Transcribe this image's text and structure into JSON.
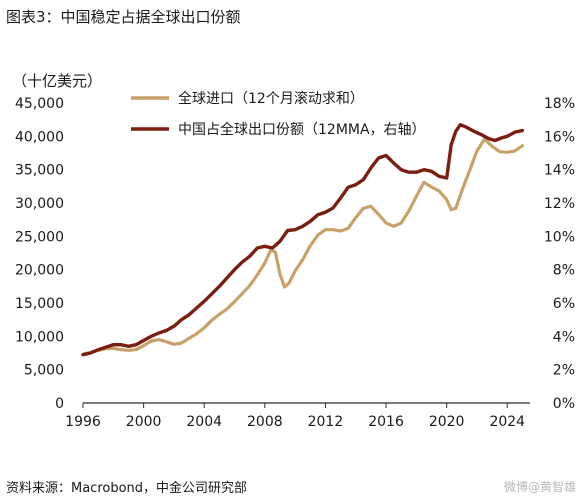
{
  "figure_title": "图表3：中国稳定占据全球出口份额",
  "source_note": "资料来源：Macrobond，中金公司研究部",
  "watermark": "微博@黄智雄",
  "colors": {
    "imports": "#c8a06a",
    "share": "#7a1e10",
    "axis": "#2a2a2a"
  },
  "chart_data": {
    "type": "line",
    "unit_label": "（十亿美元）",
    "xlim": [
      1996,
      2025.5
    ],
    "x_ticks": [
      1996,
      2000,
      2004,
      2008,
      2012,
      2016,
      2020,
      2024
    ],
    "y_left": {
      "lim": [
        0,
        45000
      ],
      "ticks": [
        "0",
        "5,000",
        "10,000",
        "15,000",
        "20,000",
        "25,000",
        "30,000",
        "35,000",
        "40,000",
        "45,000"
      ]
    },
    "y_right": {
      "lim": [
        0,
        18
      ],
      "ticks": [
        "0%",
        "2%",
        "4%",
        "6%",
        "8%",
        "10%",
        "12%",
        "14%",
        "16%",
        "18%"
      ]
    },
    "grid": false,
    "legend": "top-center",
    "series": [
      {
        "name": "全球进口（12个月滚动求和）",
        "axis": "left",
        "colorKey": "imports",
        "points": [
          [
            1996.0,
            7300
          ],
          [
            1996.5,
            7600
          ],
          [
            1997.0,
            7900
          ],
          [
            1997.5,
            8150
          ],
          [
            1998.0,
            8200
          ],
          [
            1998.5,
            8000
          ],
          [
            1999.0,
            7900
          ],
          [
            1999.5,
            8000
          ],
          [
            2000.0,
            8600
          ],
          [
            2000.5,
            9300
          ],
          [
            2001.0,
            9500
          ],
          [
            2001.5,
            9200
          ],
          [
            2002.0,
            8800
          ],
          [
            2002.5,
            9000
          ],
          [
            2003.0,
            9700
          ],
          [
            2003.5,
            10400
          ],
          [
            2004.0,
            11300
          ],
          [
            2004.5,
            12400
          ],
          [
            2005.0,
            13300
          ],
          [
            2005.5,
            14100
          ],
          [
            2006.0,
            15200
          ],
          [
            2006.5,
            16400
          ],
          [
            2007.0,
            17600
          ],
          [
            2007.5,
            19200
          ],
          [
            2008.0,
            21000
          ],
          [
            2008.4,
            23000
          ],
          [
            2008.7,
            22600
          ],
          [
            2009.0,
            19300
          ],
          [
            2009.3,
            17400
          ],
          [
            2009.6,
            18000
          ],
          [
            2010.0,
            19800
          ],
          [
            2010.5,
            21500
          ],
          [
            2011.0,
            23600
          ],
          [
            2011.5,
            25200
          ],
          [
            2012.0,
            26000
          ],
          [
            2012.5,
            26000
          ],
          [
            2013.0,
            25800
          ],
          [
            2013.5,
            26200
          ],
          [
            2014.0,
            27800
          ],
          [
            2014.5,
            29200
          ],
          [
            2015.0,
            29500
          ],
          [
            2015.5,
            28300
          ],
          [
            2016.0,
            27000
          ],
          [
            2016.5,
            26500
          ],
          [
            2017.0,
            27000
          ],
          [
            2017.5,
            28800
          ],
          [
            2018.0,
            31000
          ],
          [
            2018.5,
            33100
          ],
          [
            2019.0,
            32400
          ],
          [
            2019.5,
            31800
          ],
          [
            2020.0,
            30500
          ],
          [
            2020.3,
            29000
          ],
          [
            2020.6,
            29200
          ],
          [
            2021.0,
            31800
          ],
          [
            2021.5,
            34800
          ],
          [
            2022.0,
            37800
          ],
          [
            2022.5,
            39600
          ],
          [
            2023.0,
            38500
          ],
          [
            2023.5,
            37700
          ],
          [
            2024.0,
            37600
          ],
          [
            2024.5,
            37800
          ],
          [
            2025.0,
            38600
          ]
        ]
      },
      {
        "name": "中国占全球出口份额（12MMA，右轴）",
        "axis": "right",
        "colorKey": "share",
        "points": [
          [
            1996.0,
            2.9
          ],
          [
            1996.5,
            3.0
          ],
          [
            1997.0,
            3.2
          ],
          [
            1997.5,
            3.35
          ],
          [
            1998.0,
            3.5
          ],
          [
            1998.5,
            3.5
          ],
          [
            1999.0,
            3.4
          ],
          [
            1999.5,
            3.5
          ],
          [
            2000.0,
            3.75
          ],
          [
            2000.5,
            4.0
          ],
          [
            2001.0,
            4.2
          ],
          [
            2001.5,
            4.35
          ],
          [
            2002.0,
            4.6
          ],
          [
            2002.5,
            5.0
          ],
          [
            2003.0,
            5.3
          ],
          [
            2003.5,
            5.7
          ],
          [
            2004.0,
            6.1
          ],
          [
            2004.5,
            6.55
          ],
          [
            2005.0,
            7.0
          ],
          [
            2005.5,
            7.5
          ],
          [
            2006.0,
            8.0
          ],
          [
            2006.5,
            8.45
          ],
          [
            2007.0,
            8.8
          ],
          [
            2007.5,
            9.3
          ],
          [
            2008.0,
            9.4
          ],
          [
            2008.5,
            9.3
          ],
          [
            2009.0,
            9.7
          ],
          [
            2009.5,
            10.35
          ],
          [
            2010.0,
            10.4
          ],
          [
            2010.5,
            10.6
          ],
          [
            2011.0,
            10.9
          ],
          [
            2011.5,
            11.3
          ],
          [
            2012.0,
            11.45
          ],
          [
            2012.5,
            11.7
          ],
          [
            2013.0,
            12.3
          ],
          [
            2013.5,
            12.95
          ],
          [
            2014.0,
            13.1
          ],
          [
            2014.5,
            13.4
          ],
          [
            2015.0,
            14.1
          ],
          [
            2015.5,
            14.7
          ],
          [
            2016.0,
            14.85
          ],
          [
            2016.5,
            14.4
          ],
          [
            2017.0,
            14.0
          ],
          [
            2017.5,
            13.85
          ],
          [
            2018.0,
            13.85
          ],
          [
            2018.5,
            14.0
          ],
          [
            2019.0,
            13.9
          ],
          [
            2019.5,
            13.6
          ],
          [
            2020.0,
            13.5
          ],
          [
            2020.3,
            15.5
          ],
          [
            2020.6,
            16.3
          ],
          [
            2020.9,
            16.7
          ],
          [
            2021.3,
            16.55
          ],
          [
            2021.8,
            16.3
          ],
          [
            2022.3,
            16.1
          ],
          [
            2022.8,
            15.85
          ],
          [
            2023.2,
            15.75
          ],
          [
            2023.6,
            15.9
          ],
          [
            2024.0,
            16.0
          ],
          [
            2024.5,
            16.25
          ],
          [
            2025.0,
            16.35
          ]
        ]
      }
    ]
  }
}
